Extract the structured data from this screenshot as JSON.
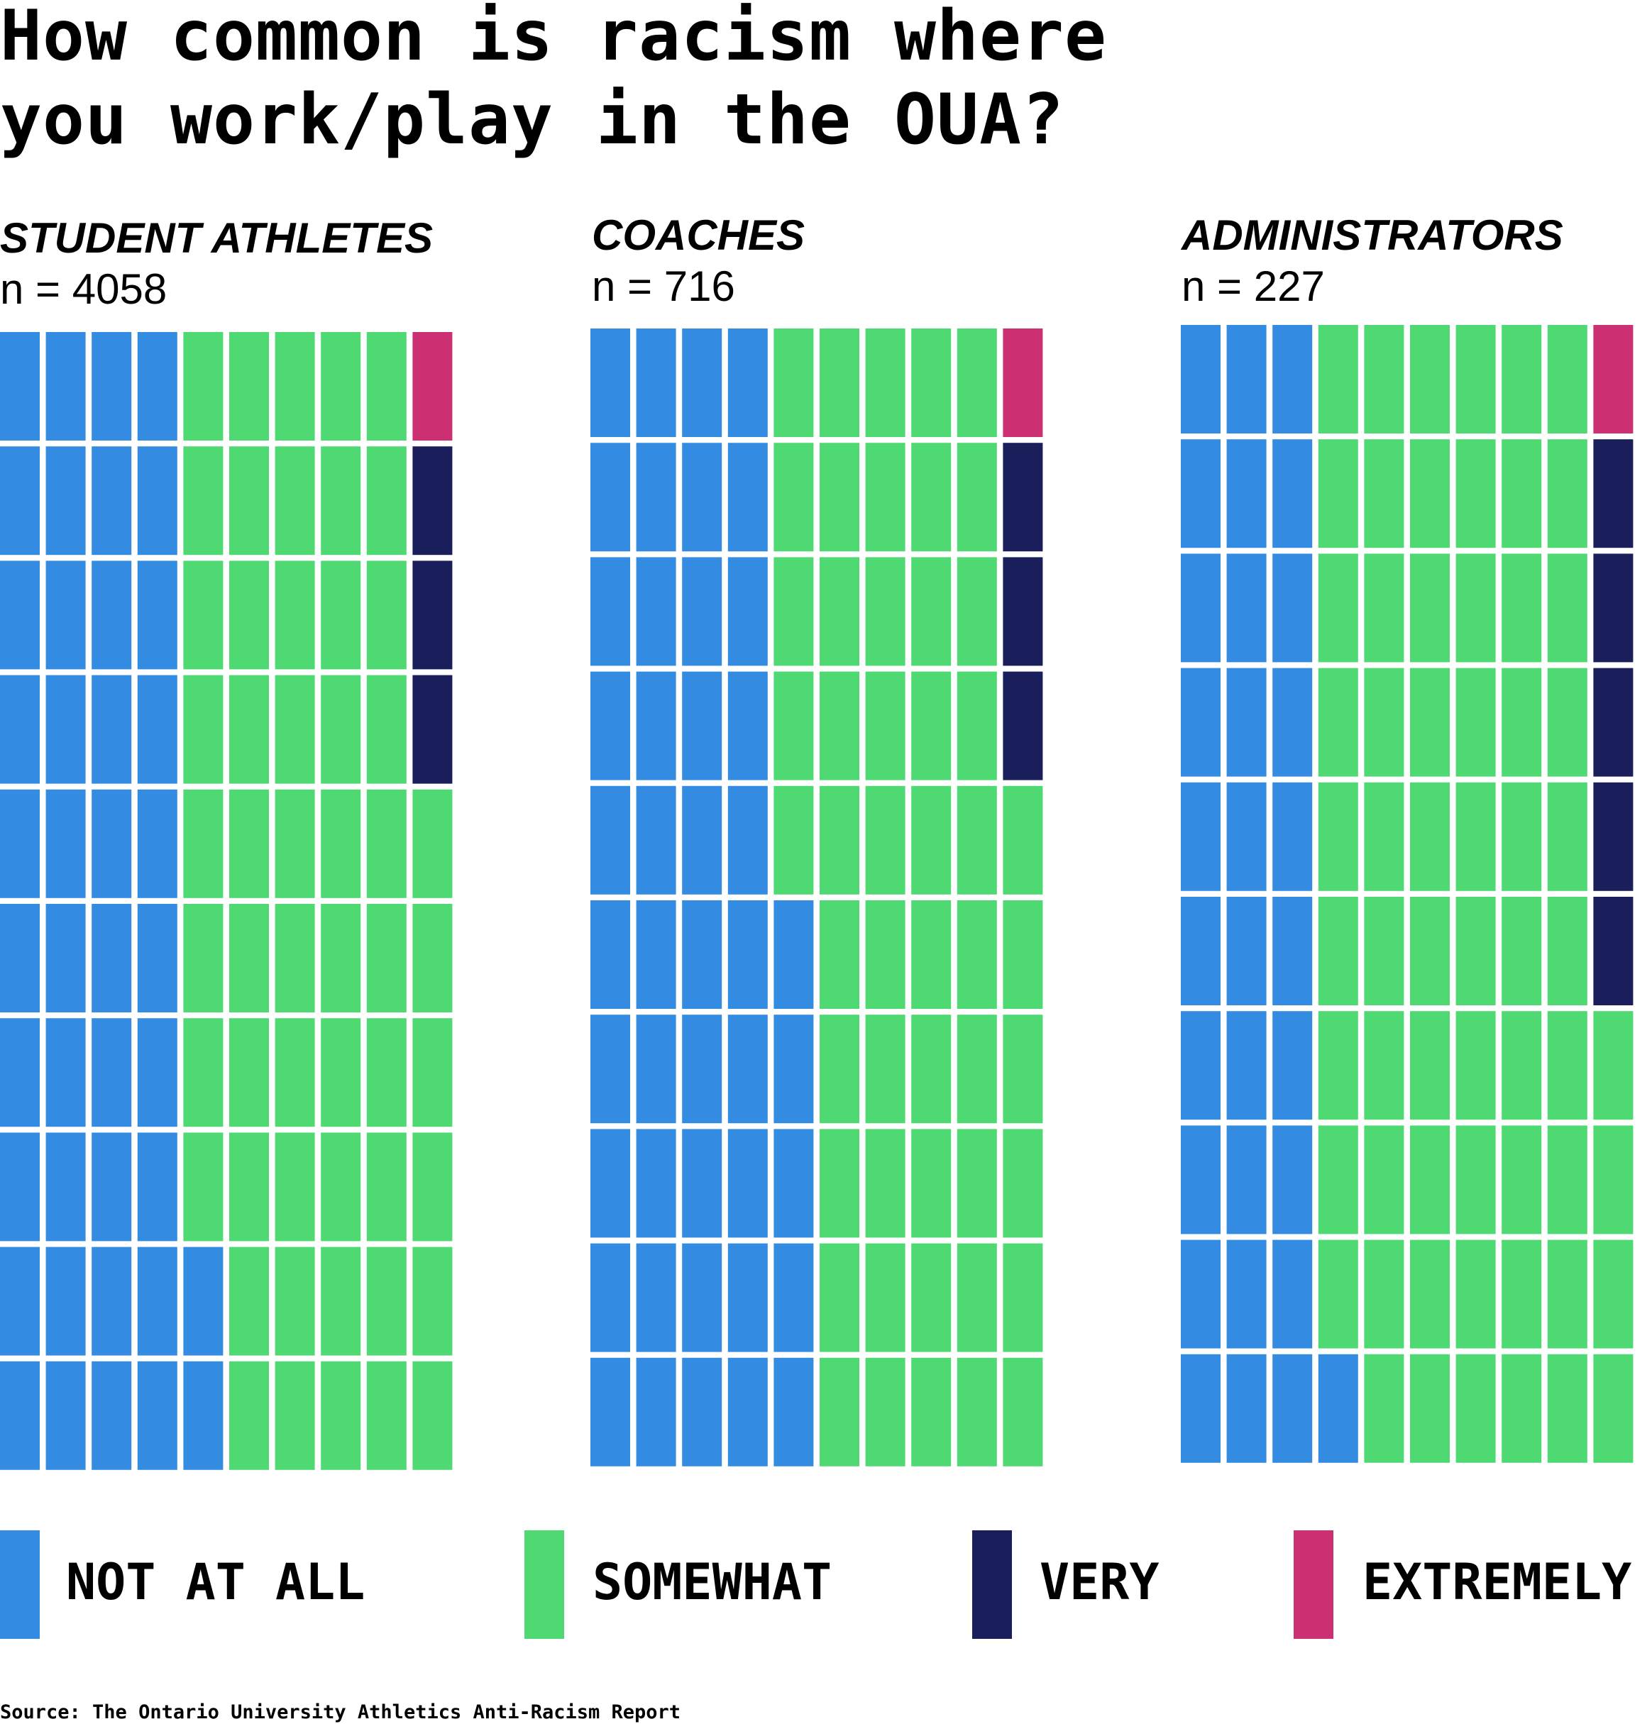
{
  "chart_data": {
    "type": "waffle",
    "title": "How common is racism where you work/play in the OUA?",
    "grid": {
      "rows": 10,
      "cols": 10,
      "unit": "percent"
    },
    "categories": [
      "NOT AT ALL",
      "SOMEWHAT",
      "VERY",
      "EXTREMELY"
    ],
    "colors": [
      "#338ce2",
      "#4fd973",
      "#1a1f5c",
      "#cc2f72"
    ],
    "groups": [
      {
        "name": "STUDENT ATHLETES",
        "n_label": "n = 4058",
        "values": [
          42,
          54,
          3,
          1
        ]
      },
      {
        "name": "COACHES",
        "n_label": "n = 716",
        "values": [
          45,
          51,
          3,
          1
        ]
      },
      {
        "name": "ADMINISTRATORS",
        "n_label": "n = 227",
        "values": [
          31,
          63,
          5,
          1
        ]
      }
    ],
    "legend_position": "bottom",
    "source": "Source: The Ontario University Athletics Anti-Racism Report"
  }
}
